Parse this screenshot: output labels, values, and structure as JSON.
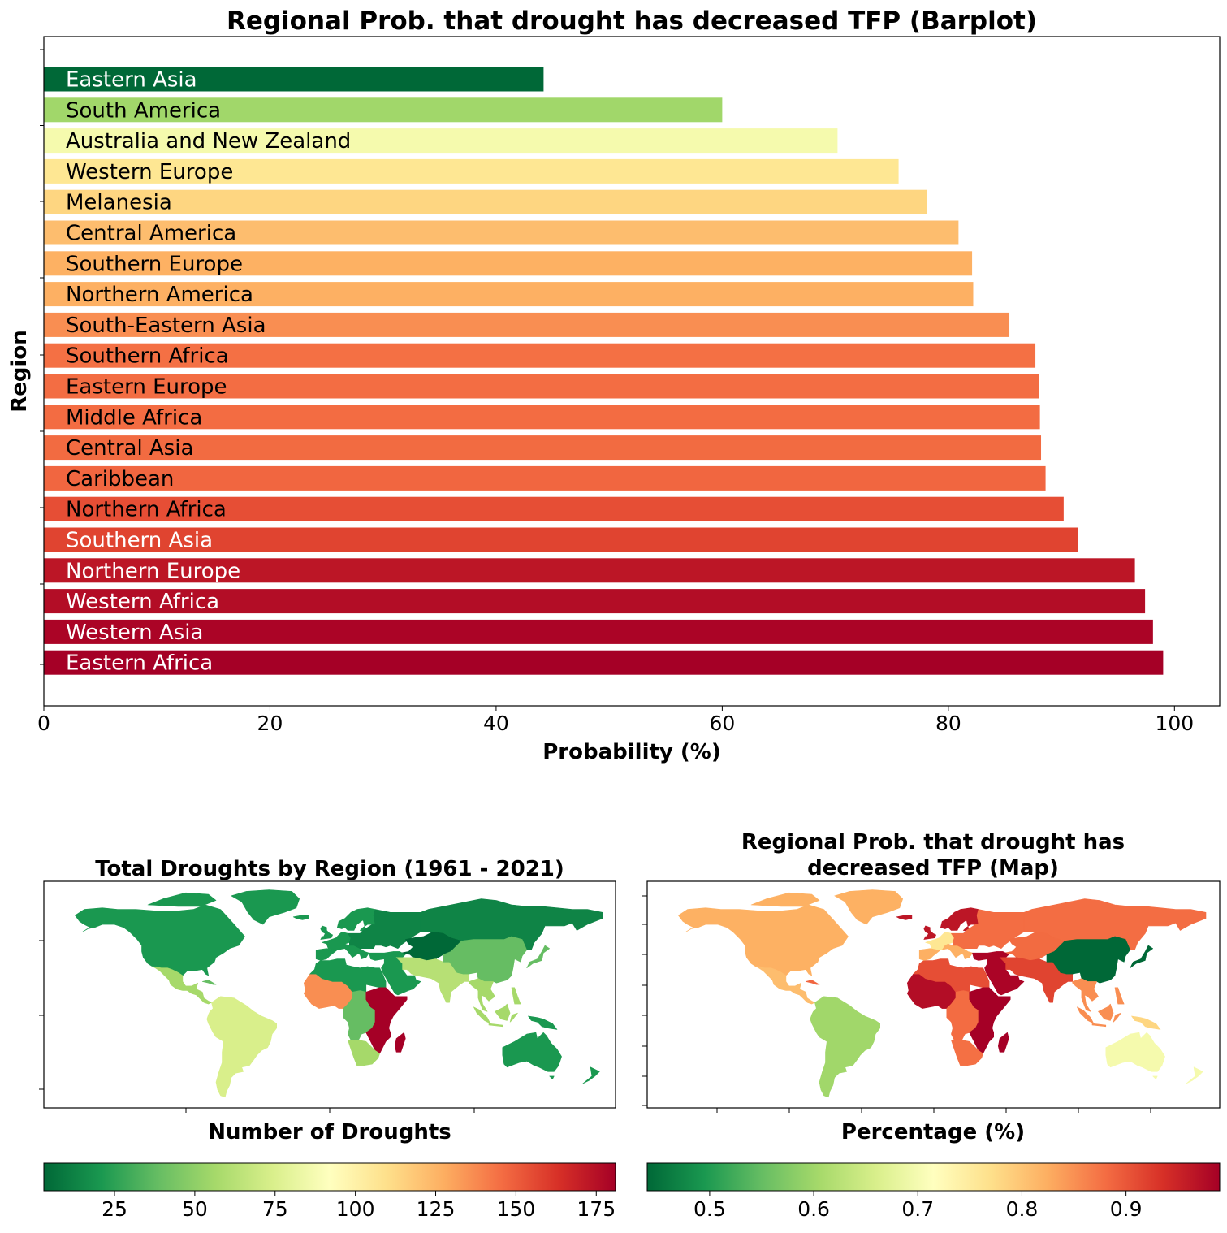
{
  "bar_chart_title": "Regional Prob. that drought has decreased TFP (Barplot)",
  "map_left_title": "Total Droughts by Region (1961 - 2021)",
  "map_right_title_line1": "Regional Prob. that drought has",
  "map_right_title_line2": "decreased TFP (Map)",
  "chart_data": [
    {
      "type": "bar",
      "orientation": "horizontal",
      "title": "Regional Prob. that drought has decreased TFP (Barplot)",
      "xlabel": "Probability (%)",
      "ylabel": "Region",
      "xlim": [
        0,
        104
      ],
      "xticks": [
        0,
        20,
        40,
        60,
        80,
        100
      ],
      "grid": false,
      "categories": [
        "Eastern Asia",
        "South America",
        "Australia and New Zealand",
        "Western Europe",
        "Melanesia",
        "Central America",
        "Southern Europe",
        "Northern America",
        "South-Eastern Asia",
        "Southern Africa",
        "Eastern Europe",
        "Middle Africa",
        "Central Asia",
        "Caribbean",
        "Northern Africa",
        "Southern Asia",
        "Northern Europe",
        "Western Africa",
        "Western Asia",
        "Eastern Africa"
      ],
      "values": [
        44.2,
        60.0,
        70.2,
        75.6,
        78.1,
        80.9,
        82.1,
        82.2,
        85.4,
        87.7,
        88.0,
        88.1,
        88.2,
        88.6,
        90.2,
        91.5,
        96.5,
        97.4,
        98.1,
        99.0
      ],
      "bar_colors": [
        "#006837",
        "#a1d76a",
        "#f5faad",
        "#fee793",
        "#fed681",
        "#fdbd6e",
        "#fdb163",
        "#fdb063",
        "#f98e52",
        "#f47044",
        "#f36d43",
        "#f36c42",
        "#f26b41",
        "#f16640",
        "#e64e35",
        "#e04430",
        "#bc1626",
        "#b30d26",
        "#ab0426",
        "#a50026"
      ],
      "label_colors": [
        "#ffffff",
        "#000000",
        "#000000",
        "#000000",
        "#000000",
        "#000000",
        "#000000",
        "#000000",
        "#000000",
        "#000000",
        "#000000",
        "#000000",
        "#000000",
        "#000000",
        "#000000",
        "#ffffff",
        "#ffffff",
        "#ffffff",
        "#ffffff",
        "#ffffff"
      ]
    },
    {
      "type": "choropleth-map",
      "title": "Total Droughts by Region (1961 - 2021)",
      "colorbar_label": "Number of Droughts",
      "colorbar_range": [
        3,
        181
      ],
      "colorbar_ticks": [
        25,
        50,
        75,
        100,
        125,
        150,
        175
      ],
      "colormap": "RdYlGn_r"
    },
    {
      "type": "choropleth-map",
      "title": "Regional Prob. that drought has decreased TFP (Map)",
      "colorbar_label": "Percentage (%)",
      "colorbar_range": [
        0.44,
        0.99
      ],
      "colorbar_ticks": [
        "0.5",
        "0.6",
        "0.7",
        "0.8",
        "0.9"
      ],
      "colormap": "RdYlGn_r"
    }
  ],
  "colors": {
    "ocean": "#ffffff",
    "map_left": {
      "north_america": "#1a9850",
      "central_america": "#a6d96a",
      "caribbean": "#66bd63",
      "south_america": "#d9ef8b",
      "western_africa": "#f98e52",
      "northern_africa": "#1a9850",
      "middle_africa": "#66bd63",
      "eastern_africa": "#a50026",
      "southern_africa": "#a6d96a",
      "europe": "#1a9850",
      "eastern_europe": "#0f8446",
      "central_asia": "#006837",
      "western_asia": "#1a9850",
      "southern_asia": "#b7e075",
      "eastern_asia": "#66bd63",
      "southeast_asia": "#a6d96a",
      "australia": "#1a9850",
      "greenland": "#1a9850"
    },
    "map_right": {
      "north_america": "#fdb163",
      "central_america": "#fdbd6e",
      "caribbean": "#f16640",
      "south_america": "#a1d76a",
      "western_africa": "#b30d26",
      "northern_africa": "#e64e35",
      "middle_africa": "#f36c42",
      "eastern_africa": "#a50026",
      "southern_africa": "#f47044",
      "western_europe": "#fee793",
      "northern_europe": "#bc1626",
      "southern_europe": "#fdb063",
      "eastern_europe": "#f36d43",
      "central_asia": "#f26b41",
      "western_asia": "#ab0426",
      "southern_asia": "#e04430",
      "eastern_asia": "#006837",
      "southeast_asia": "#f98e52",
      "australia": "#f5faad",
      "melanesia": "#fed681",
      "greenland": "#fdb163"
    }
  }
}
